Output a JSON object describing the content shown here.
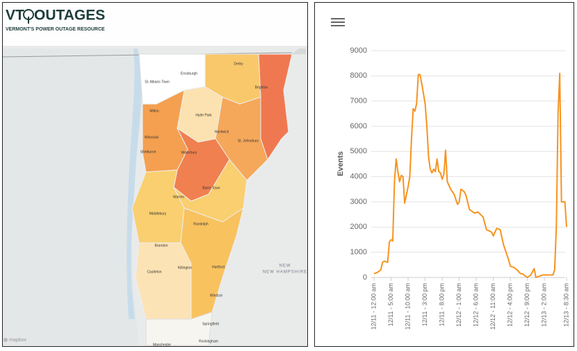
{
  "header": {
    "logo_left": "VT",
    "logo_right": "OUTAGES",
    "tagline": "VERMONT'S POWER OUTAGE RESOURCE"
  },
  "map": {
    "labels": [
      "St. Albans Town",
      "Enosburgh",
      "Derby",
      "Brighton",
      "Milton",
      "Hyde Park",
      "Hardwick",
      "St. Johnsbury",
      "Winooski",
      "Shelburne",
      "Waterbury",
      "Barre Town",
      "Warren",
      "Middlebury",
      "Randolph",
      "Brandon",
      "Castleton",
      "Killington",
      "Hartford",
      "Windsor",
      "Springfield",
      "Manchester",
      "Rockingham"
    ],
    "region_label": "NEW HAMPSHIRE",
    "attribution": "mapbox"
  },
  "chart_data": {
    "type": "line",
    "y_label": "Events",
    "color": "#f7931e",
    "x": [
      0,
      1,
      2,
      2.5,
      3,
      4,
      4.5,
      5,
      5.5,
      6,
      6.5,
      7,
      7.5,
      8,
      8.5,
      9,
      10,
      10.5,
      11,
      11.5,
      12,
      12.5,
      13,
      13.5,
      14,
      15,
      15.5,
      16,
      16.5,
      17,
      17.5,
      18,
      18.5,
      19,
      19.5,
      20,
      20.5,
      21,
      21.5,
      22.5,
      23.5,
      24.5,
      25,
      25.5,
      26.5,
      27,
      28,
      29,
      29.5,
      30.5,
      32,
      33,
      34.5,
      35,
      36,
      37,
      38,
      39.5,
      40,
      41,
      42,
      43,
      43.5,
      44.5,
      45,
      46,
      47,
      47.5,
      48.5,
      49.5,
      50.5,
      52.5,
      53,
      53.5,
      54,
      54.5,
      55,
      56,
      56.5
    ],
    "values": [
      150,
      200,
      300,
      600,
      650,
      600,
      1400,
      1500,
      1450,
      3800,
      4700,
      4200,
      3800,
      4050,
      4000,
      2950,
      3600,
      4000,
      5500,
      6700,
      6600,
      6900,
      8050,
      8050,
      7700,
      6900,
      6000,
      4800,
      4300,
      4150,
      4300,
      4200,
      4700,
      4200,
      4150,
      3900,
      4100,
      5050,
      3800,
      3500,
      3300,
      2900,
      3000,
      3500,
      3400,
      3250,
      2700,
      2600,
      2550,
      2600,
      2400,
      1900,
      1800,
      1650,
      1950,
      1900,
      1300,
      700,
      450,
      400,
      300,
      150,
      150,
      50,
      0,
      100,
      350,
      0,
      50,
      100,
      100,
      100,
      300,
      2000,
      6500,
      8100,
      3000,
      3000,
      2000
    ],
    "xlim": [
      0,
      56.5
    ],
    "xticks": [
      {
        "value": 0,
        "label": "12/11 - 12:00 am"
      },
      {
        "value": 5,
        "label": "12/11 - 5:00 am"
      },
      {
        "value": 10,
        "label": "12/11 - 10:00 am"
      },
      {
        "value": 15,
        "label": "12/11 - 3:00 pm"
      },
      {
        "value": 20,
        "label": "12/11 - 8:00 pm"
      },
      {
        "value": 25,
        "label": "12/12 - 1:00 am"
      },
      {
        "value": 30,
        "label": "12/12 - 6:00 am"
      },
      {
        "value": 35,
        "label": "12/12 - 11:00 am"
      },
      {
        "value": 40,
        "label": "12/12 - 4:00 pm"
      },
      {
        "value": 45,
        "label": "12/12 - 9:00 pm"
      },
      {
        "value": 50,
        "label": "12/13 - 2:00 am"
      },
      {
        "value": 56.5,
        "label": "12/13 - 8:30 am"
      }
    ],
    "ylim": [
      0,
      9000
    ],
    "yticks": [
      0,
      1000,
      2000,
      3000,
      4000,
      5000,
      6000,
      7000,
      8000,
      9000
    ],
    "grid": true
  }
}
